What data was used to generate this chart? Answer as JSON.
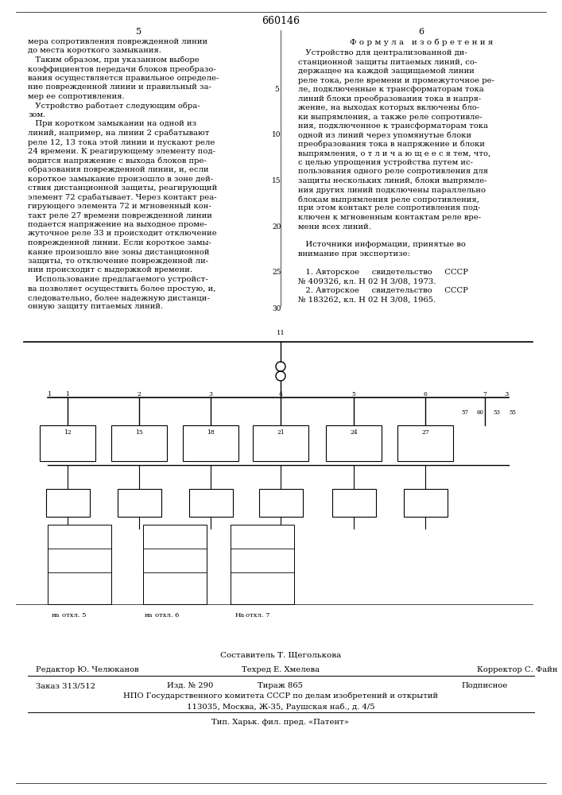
{
  "bg_color": "#f5f5f0",
  "page_color": "#ffffff",
  "patent_number": "660146",
  "col_left_num": "5",
  "col_right_num": "6",
  "col_left_text": [
    "мера сопротивления поврежденной линии",
    "до места короткого замыкания.",
    "   Таким образом, при указанном выборе",
    "коэффициентов передачи блоков преобразо-",
    "вания осуществляется правильное определе-",
    "ние поврежденной линии и правильный за-",
    "мер ее сопротивления.",
    "   Устройство работает следующим обра-",
    "зом.",
    "   При коротком замыкании на одной из",
    "линий, например, на линии 2 срабатывают",
    "реле 12, 13 тока этой линии и пускают реле",
    "24 времени. К реагирующему элементу под-",
    "водится напряжение с выхода блоков пре-",
    "образования поврежденной линии, и, если",
    "короткое замыкание произошло в зоне дей-",
    "ствия дистанционной защиты, реагирующий",
    "элемент 72 срабатывает. Через контакт реа-",
    "гирующего элемента 72 и мгновенный кон-",
    "такт реле 27 времени поврежденной линии",
    "подается напряжение на выходное проме-",
    "жуточное реле 33 и происходит отключение",
    "поврежденной линии. Если короткое замы-",
    "кание произошло вне зоны дистанционной",
    "защиты, то отключение поврежденной ли-",
    "нии происходит с выдержкой времени.",
    "   Использование предлагаемого устройст-",
    "ва позволяет осуществить более простую, и,",
    "следовательно, более надежную дистанци-",
    "онную защиту питаемых линий."
  ],
  "col_right_header": "Ф о р м у л а   и з о б р е т е н и я",
  "col_right_text": [
    "   Устройство для централизованной ди-",
    "станционной защиты питаемых линий, со-",
    "держащее на каждой защищаемой линии",
    "реле тока, реле времени и промежуточное ре-",
    "ле, подключенные к трансформаторам тока",
    "линий блоки преобразования тока в напря-",
    "жение, на выходах которых включены бло-",
    "ки выпрямления, а также реле сопротивле-",
    "ния, подключенное к трансформаторам тока",
    "одной из линий через упомянутые блоки",
    "преобразования тока в напряжение и блоки",
    "выпрямления, о т л и ч а ю щ е е с я тем, что,",
    "с целью упрощения устройства путем ис-",
    "пользования одного реле сопротивления для",
    "защиты нескольких линий, блоки выпрямле-",
    "ния других линий подключены параллельно",
    "блокам выпрямления реле сопротивления,",
    "при этом контакт реле сопротивления под-",
    "ключен к мгновенным контактам реле вре-",
    "мени всех линий.",
    "",
    "   Источники информации, принятые во",
    "внимание при экспертизе:",
    "",
    "   1. Авторское     свидетельство     СССР",
    "№ 409326, кл. Н 02 Н 3/08, 1973.",
    "   2. Авторское     свидетельство     СССР",
    "№ 183262, кл. Н 02 Н 3/08, 1965."
  ],
  "col_right_line_bold": [
    1
  ],
  "footer_compiler": "Составитель Т. Щеголькова",
  "footer_editor": "Редактор Ю. Челюканов",
  "footer_tech": "Техред Е. Хмелева",
  "footer_corrector": "Корректор С. Файн",
  "footer_order": "Заказ 313/512",
  "footer_izd": "Изд. № 290",
  "footer_tirazh": "Тираж 865",
  "footer_podpis": "Подписное",
  "footer_npo": "НПО Государственного комитета СССР по делам изобретений и открытий",
  "footer_addr": "113035, Москва, Ж-35, Раушская наб., д. 4/5",
  "footer_tip": "Тип. Харьк. фил. пред. «Патент»",
  "line_numbers_left": [
    "5",
    "10",
    "15",
    "20",
    "25",
    "30"
  ],
  "line_numbers_right": [
    "5",
    "10",
    "15",
    "20",
    "25",
    "30"
  ]
}
